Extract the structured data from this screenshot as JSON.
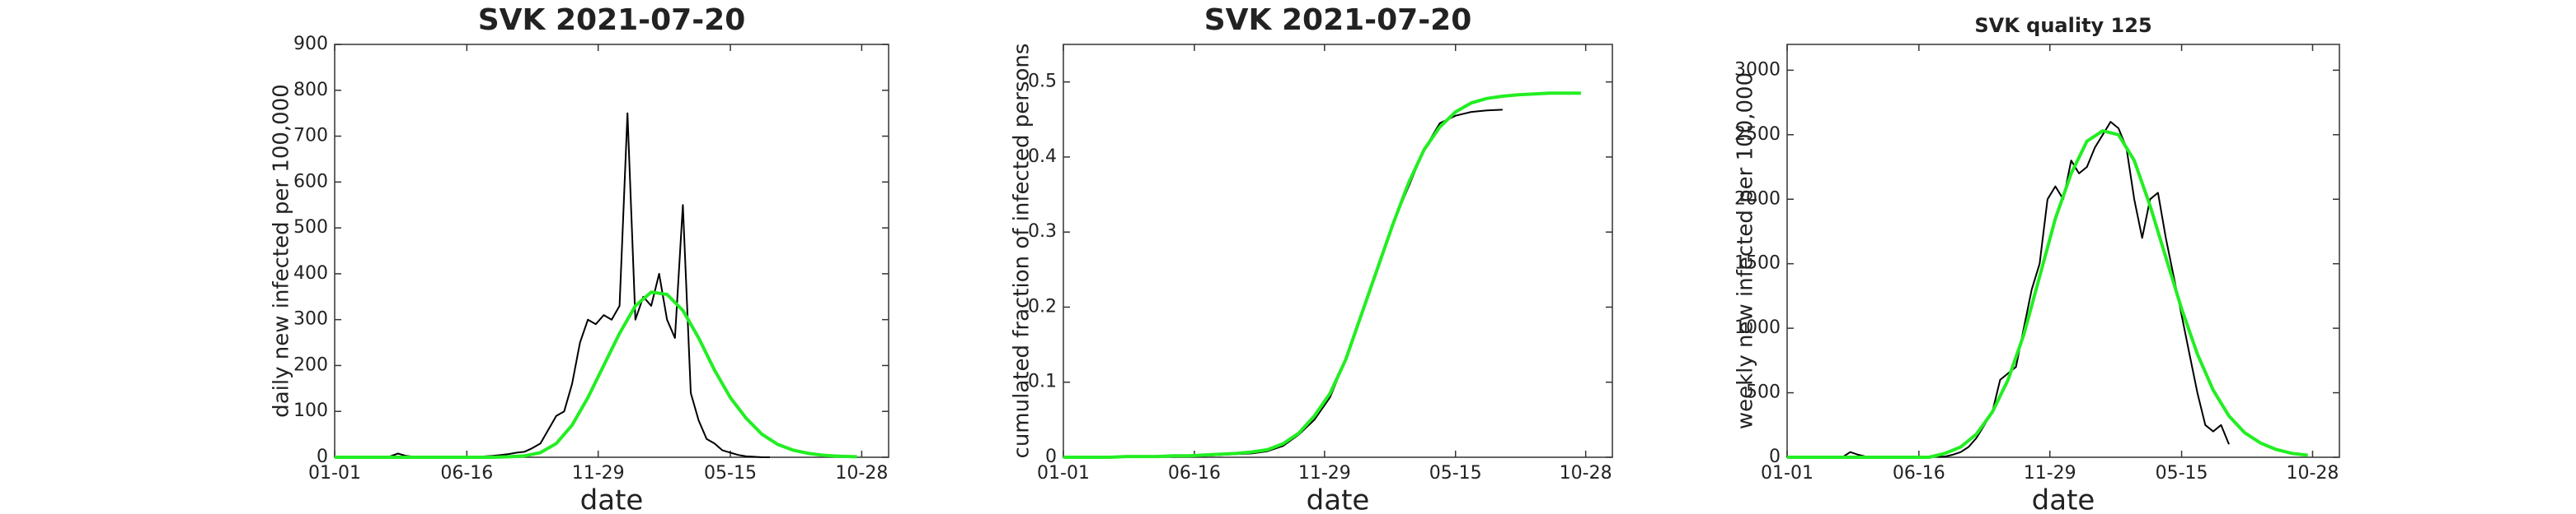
{
  "chart_data": [
    {
      "type": "line",
      "title": "SVK   2021-07-20",
      "xlabel": "date",
      "ylabel": "daily new infected per 100,000",
      "xlim": [
        0,
        700
      ],
      "xticks": [
        {
          "value": 0,
          "label": "01-01"
        },
        {
          "value": 167,
          "label": "06-16"
        },
        {
          "value": 333,
          "label": "11-29"
        },
        {
          "value": 500,
          "label": "05-15"
        },
        {
          "value": 666,
          "label": "10-28"
        }
      ],
      "ylim": [
        0,
        900
      ],
      "yticks": [
        0,
        100,
        200,
        300,
        400,
        500,
        600,
        700,
        800,
        900
      ],
      "series": [
        {
          "color": "#000000",
          "x": [
            0,
            10,
            20,
            30,
            40,
            50,
            60,
            70,
            80,
            90,
            100,
            110,
            120,
            130,
            140,
            150,
            160,
            170,
            180,
            190,
            200,
            210,
            220,
            230,
            240,
            250,
            260,
            270,
            280,
            290,
            300,
            310,
            320,
            330,
            340,
            350,
            360,
            370,
            380,
            390,
            400,
            410,
            420,
            430,
            440,
            450,
            460,
            470,
            480,
            490,
            500,
            510,
            520,
            530,
            540,
            550
          ],
          "values": [
            0,
            0,
            0,
            0,
            0,
            0,
            0,
            2,
            8,
            3,
            1,
            1,
            1,
            1,
            1,
            1,
            1,
            1,
            1,
            2,
            3,
            5,
            7,
            10,
            12,
            20,
            30,
            60,
            90,
            100,
            160,
            250,
            300,
            290,
            310,
            300,
            330,
            750,
            300,
            350,
            330,
            400,
            300,
            260,
            550,
            140,
            80,
            40,
            30,
            15,
            10,
            5,
            2,
            1,
            0,
            0
          ]
        },
        {
          "color": "#22ee22",
          "x": [
            0,
            20,
            40,
            60,
            80,
            100,
            120,
            140,
            160,
            180,
            200,
            220,
            240,
            260,
            280,
            300,
            320,
            340,
            360,
            380,
            400,
            420,
            440,
            460,
            480,
            500,
            520,
            540,
            560,
            580,
            600,
            620,
            640,
            660
          ],
          "values": [
            0,
            0,
            0,
            0,
            0,
            0,
            0,
            0,
            0,
            0,
            0,
            1,
            3,
            10,
            30,
            70,
            130,
            200,
            270,
            330,
            360,
            355,
            320,
            260,
            190,
            130,
            85,
            50,
            28,
            15,
            8,
            4,
            2,
            1
          ]
        }
      ]
    },
    {
      "type": "line",
      "title": "SVK   2021-07-20",
      "xlabel": "date",
      "ylabel": "cumulated fraction of infected persons",
      "xlim": [
        0,
        700
      ],
      "xticks": [
        {
          "value": 0,
          "label": "01-01"
        },
        {
          "value": 167,
          "label": "06-16"
        },
        {
          "value": 333,
          "label": "11-29"
        },
        {
          "value": 500,
          "label": "05-15"
        },
        {
          "value": 666,
          "label": "10-28"
        }
      ],
      "ylim": [
        0,
        0.55
      ],
      "yticks": [
        0,
        0.1,
        0.2,
        0.3,
        0.4,
        0.5
      ],
      "series": [
        {
          "color": "#000000",
          "x": [
            0,
            20,
            40,
            60,
            80,
            100,
            120,
            140,
            160,
            180,
            200,
            220,
            240,
            260,
            280,
            300,
            320,
            340,
            360,
            380,
            400,
            420,
            440,
            460,
            480,
            500,
            520,
            540,
            560
          ],
          "values": [
            0,
            0,
            0,
            0,
            0.001,
            0.001,
            0.001,
            0.001,
            0.002,
            0.002,
            0.003,
            0.004,
            0.005,
            0.008,
            0.015,
            0.03,
            0.05,
            0.08,
            0.13,
            0.19,
            0.25,
            0.31,
            0.36,
            0.41,
            0.445,
            0.455,
            0.46,
            0.462,
            0.463
          ]
        },
        {
          "color": "#22ee22",
          "x": [
            0,
            20,
            40,
            60,
            80,
            100,
            120,
            140,
            160,
            180,
            200,
            220,
            240,
            260,
            280,
            300,
            320,
            340,
            360,
            380,
            400,
            420,
            440,
            460,
            480,
            500,
            520,
            540,
            560,
            580,
            600,
            620,
            640,
            660
          ],
          "values": [
            0,
            0,
            0,
            0,
            0.001,
            0.001,
            0.001,
            0.002,
            0.002,
            0.003,
            0.004,
            0.005,
            0.007,
            0.01,
            0.018,
            0.032,
            0.055,
            0.085,
            0.13,
            0.19,
            0.25,
            0.31,
            0.365,
            0.41,
            0.44,
            0.46,
            0.472,
            0.478,
            0.481,
            0.483,
            0.484,
            0.485,
            0.485,
            0.485
          ]
        }
      ]
    },
    {
      "type": "line",
      "title": "SVK  quality 125",
      "xlabel": "date",
      "ylabel": "weekly new infected per 100,000",
      "xlim": [
        0,
        700
      ],
      "xticks": [
        {
          "value": 0,
          "label": "01-01"
        },
        {
          "value": 167,
          "label": "06-16"
        },
        {
          "value": 333,
          "label": "11-29"
        },
        {
          "value": 500,
          "label": "05-15"
        },
        {
          "value": 666,
          "label": "10-28"
        }
      ],
      "ylim": [
        0,
        3200
      ],
      "yticks": [
        0,
        500,
        1000,
        1500,
        2000,
        2500,
        3000
      ],
      "series": [
        {
          "color": "#000000",
          "x": [
            0,
            10,
            20,
            30,
            40,
            50,
            60,
            70,
            80,
            90,
            100,
            110,
            120,
            130,
            140,
            150,
            160,
            170,
            180,
            190,
            200,
            210,
            220,
            230,
            240,
            250,
            260,
            270,
            280,
            290,
            300,
            310,
            320,
            330,
            340,
            350,
            360,
            370,
            380,
            390,
            400,
            410,
            420,
            430,
            440,
            450,
            460,
            470,
            480,
            490,
            500,
            510,
            520,
            530,
            540,
            550,
            560
          ],
          "values": [
            0,
            0,
            0,
            0,
            0,
            0,
            0,
            0,
            40,
            20,
            5,
            5,
            5,
            5,
            5,
            5,
            5,
            5,
            5,
            5,
            5,
            20,
            40,
            80,
            150,
            250,
            350,
            600,
            650,
            700,
            1000,
            1300,
            1500,
            2000,
            2100,
            2000,
            2300,
            2200,
            2250,
            2400,
            2500,
            2600,
            2550,
            2400,
            2000,
            1700,
            2000,
            2050,
            1700,
            1400,
            1100,
            800,
            500,
            250,
            200,
            250,
            100
          ]
        },
        {
          "color": "#22ee22",
          "x": [
            0,
            20,
            40,
            60,
            80,
            100,
            120,
            140,
            160,
            180,
            200,
            220,
            240,
            260,
            280,
            300,
            320,
            340,
            360,
            380,
            400,
            420,
            440,
            460,
            480,
            500,
            520,
            540,
            560,
            580,
            600,
            620,
            640,
            660
          ],
          "values": [
            0,
            0,
            0,
            0,
            0,
            0,
            0,
            0,
            0,
            0,
            30,
            80,
            180,
            350,
            600,
            950,
            1400,
            1850,
            2200,
            2450,
            2530,
            2500,
            2300,
            1950,
            1550,
            1150,
            800,
            520,
            320,
            190,
            110,
            60,
            30,
            15
          ]
        }
      ]
    }
  ]
}
